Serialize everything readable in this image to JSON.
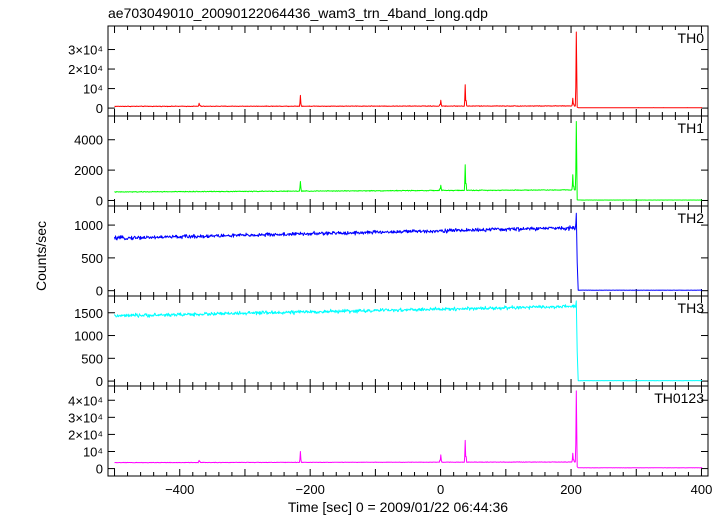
{
  "chart_data": {
    "type": "line",
    "title": "ae703049010_20090122064436_wam3_trn_4band_long.qdp",
    "xlabel": "Time [sec] 0 = 2009/01/22 06:44:36",
    "ylabel": "Counts/sec",
    "xlim": [
      -510,
      410
    ],
    "x_ticks": [
      {
        "value": -400,
        "label": "−400"
      },
      {
        "value": -200,
        "label": "−200"
      },
      {
        "value": 0,
        "label": "0"
      },
      {
        "value": 200,
        "label": "200"
      },
      {
        "value": 400,
        "label": "400"
      }
    ],
    "grid": false,
    "panels": [
      {
        "name": "TH0",
        "color": "#ff0000",
        "ylim": [
          -2000,
          40000
        ],
        "y_ticks": [
          {
            "value": 0,
            "label": "0"
          },
          {
            "value": 10000,
            "label": "10⁴"
          },
          {
            "value": 20000,
            "label": "2×10⁴"
          },
          {
            "value": 30000,
            "label": "3×10⁴"
          }
        ],
        "baseline_start": 900,
        "baseline_end": 1100,
        "noise": 150,
        "spikes": [
          {
            "x": -370,
            "y": 2500
          },
          {
            "x": -215,
            "y": 6500
          },
          {
            "x": 0,
            "y": 4000
          },
          {
            "x": 38,
            "y": 12000
          },
          {
            "x": 203,
            "y": 5000
          },
          {
            "x": 208,
            "y": 39000
          }
        ],
        "after_drop": 500,
        "after_value": 200
      },
      {
        "name": "TH1",
        "color": "#00ff00",
        "ylim": [
          -100,
          5300
        ],
        "y_ticks": [
          {
            "value": 0,
            "label": "0"
          },
          {
            "value": 2000,
            "label": "2000"
          },
          {
            "value": 4000,
            "label": "4000"
          }
        ],
        "baseline_start": 560,
        "baseline_end": 700,
        "noise": 25,
        "spikes": [
          {
            "x": -215,
            "y": 1250
          },
          {
            "x": 0,
            "y": 1000
          },
          {
            "x": 38,
            "y": 2350
          },
          {
            "x": 203,
            "y": 1700
          },
          {
            "x": 208,
            "y": 5200
          }
        ],
        "after_drop": 40,
        "after_value": 30
      },
      {
        "name": "TH2",
        "color": "#0000ff",
        "ylim": [
          -20,
          1230
        ],
        "y_ticks": [
          {
            "value": 0,
            "label": "0"
          },
          {
            "value": 500,
            "label": "500"
          },
          {
            "value": 1000,
            "label": "1000"
          }
        ],
        "baseline_start": 800,
        "baseline_end": 960,
        "noise": 28,
        "spikes": [
          {
            "x": 208,
            "y": 1180
          }
        ],
        "after_drop": 430,
        "after_value": 8
      },
      {
        "name": "TH3",
        "color": "#00ffff",
        "ylim": [
          -20,
          1780
        ],
        "y_ticks": [
          {
            "value": 0,
            "label": "0"
          },
          {
            "value": 500,
            "label": "500"
          },
          {
            "value": 1000,
            "label": "1000"
          },
          {
            "value": 1500,
            "label": "1500"
          }
        ],
        "baseline_start": 1430,
        "baseline_end": 1640,
        "noise": 38,
        "spikes": [
          {
            "x": 208,
            "y": 1760
          }
        ],
        "after_drop": 650,
        "after_value": 10
      },
      {
        "name": "TH0123",
        "color": "#ff00ff",
        "ylim": [
          -2000,
          46000
        ],
        "y_ticks": [
          {
            "value": 0,
            "label": "0"
          },
          {
            "value": 10000,
            "label": "10⁴"
          },
          {
            "value": 20000,
            "label": "2×10⁴"
          },
          {
            "value": 30000,
            "label": "3×10⁴"
          },
          {
            "value": 40000,
            "label": "4×10⁴"
          }
        ],
        "baseline_start": 3500,
        "baseline_end": 3850,
        "noise": 120,
        "spikes": [
          {
            "x": -370,
            "y": 4800
          },
          {
            "x": -215,
            "y": 10000
          },
          {
            "x": 0,
            "y": 8000
          },
          {
            "x": 38,
            "y": 16500
          },
          {
            "x": 203,
            "y": 9000
          },
          {
            "x": 208,
            "y": 45500
          }
        ],
        "after_drop": 1100,
        "after_value": 450
      }
    ]
  }
}
